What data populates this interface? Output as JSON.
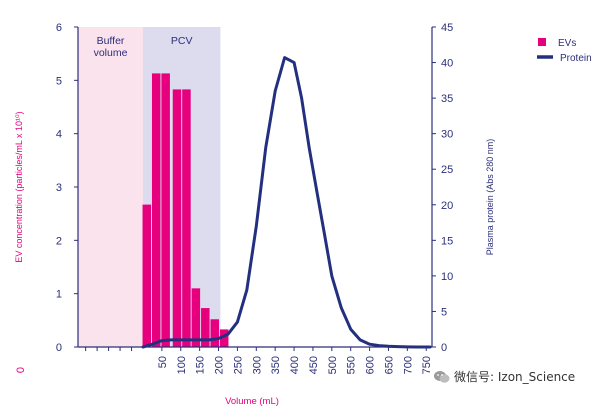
{
  "chart_data": {
    "type": "bar",
    "xlabel": "Volume (mL)",
    "ylabel_left": "EV concentration (particles/mL x 10¹⁰)",
    "ylabel_right": "Plasma protein (Abs 280 nm)",
    "ylim_left": [
      0,
      6
    ],
    "ylim_right": [
      0,
      45
    ],
    "xlim": [
      -170,
      760
    ],
    "x_ticks": [
      50,
      100,
      150,
      200,
      250,
      300,
      350,
      400,
      450,
      500,
      550,
      600,
      650,
      700,
      750
    ],
    "x_tick_labels": [
      "50",
      "100",
      "150",
      "200",
      "250",
      "300",
      "350",
      "400",
      "450",
      "500",
      "550",
      "600",
      "650",
      "700",
      "750"
    ],
    "x_zero_label": "0",
    "y_left_ticks": [
      0,
      1,
      2,
      3,
      4,
      5,
      6
    ],
    "y_right_ticks": [
      0,
      5,
      10,
      15,
      20,
      25,
      30,
      35,
      40,
      45
    ],
    "regions": [
      {
        "label_line1": "Buffer",
        "label_line2": "volume",
        "x_start": -170,
        "x_end": 0,
        "color": "#fbe3ee"
      },
      {
        "label_line1": "PCV",
        "label_line2": "",
        "x_start": 0,
        "x_end": 205,
        "color": "#dcdcee"
      }
    ],
    "series": [
      {
        "name": "EVs",
        "type": "bar",
        "axis": "left",
        "color": "#e6007e",
        "x": [
          10,
          35,
          60,
          90,
          115,
          140,
          165,
          190,
          215,
          235
        ],
        "values": [
          2.67,
          5.13,
          5.13,
          4.83,
          4.83,
          1.1,
          0.73,
          0.52,
          0.33,
          0.0
        ]
      },
      {
        "name": "Protein",
        "type": "line",
        "axis": "right",
        "color": "#23307f",
        "x": [
          0,
          25,
          50,
          75,
          100,
          125,
          150,
          175,
          200,
          225,
          250,
          275,
          300,
          325,
          350,
          375,
          400,
          420,
          440,
          460,
          480,
          500,
          525,
          550,
          575,
          600,
          625,
          650,
          675,
          700,
          725,
          760
        ],
        "values": [
          0,
          0.4,
          0.9,
          1.0,
          1.0,
          1.0,
          1.0,
          1.0,
          1.2,
          1.8,
          3.5,
          8.0,
          17,
          28,
          36,
          40.7,
          40.0,
          35,
          28,
          22,
          16,
          10,
          5.5,
          2.5,
          1.0,
          0.4,
          0.2,
          0.1,
          0.05,
          0.02,
          0.0,
          0.0
        ]
      }
    ],
    "legend": {
      "position": "top-right",
      "items": [
        "EVs",
        "Protein"
      ]
    }
  },
  "watermark": {
    "text": "微信号: Izon_Science"
  }
}
